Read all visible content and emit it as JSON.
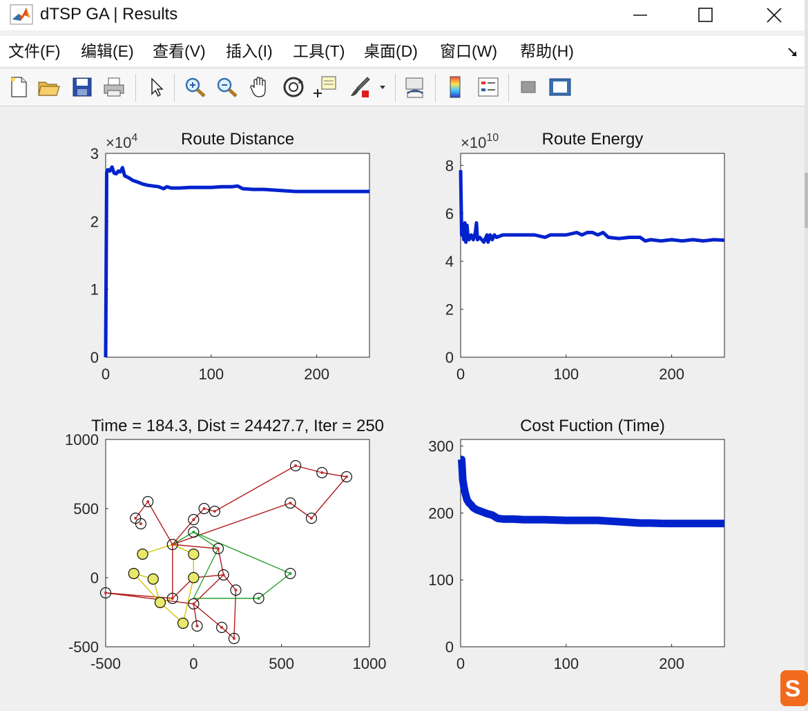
{
  "window": {
    "title": "dTSP GA | Results",
    "controls": {
      "minimize": "minimize",
      "maximize": "maximize",
      "close": "close"
    }
  },
  "menu": {
    "items": [
      "文件(F)",
      "编辑(E)",
      "查看(V)",
      "插入(I)",
      "工具(T)",
      "桌面(D)",
      "窗口(W)",
      "帮助(H)"
    ]
  },
  "toolbar": {
    "buttons": [
      "new-figure",
      "open-file",
      "save",
      "print",
      "edit-plot",
      "zoom-in",
      "zoom-out",
      "pan",
      "rotate-3d",
      "data-cursor",
      "brush",
      "link-plot",
      "colorbar",
      "legend",
      "hide-plot-tools",
      "show-plot-tools"
    ]
  },
  "colors": {
    "series": "#0022cc",
    "route_red": "#b21b1b",
    "route_green": "#2ca02c",
    "route_yellow": "#d4c400",
    "marker_red": "#c0302f",
    "marker_green": "#1f9e3a",
    "marker_yellow": "#e8e86a"
  },
  "chart_data": [
    {
      "type": "line",
      "title": "Route Distance",
      "exponent": "×10",
      "exponent_power": "4",
      "xlim": [
        0,
        250
      ],
      "ylim": [
        0,
        3
      ],
      "xticks": [
        0,
        100,
        200
      ],
      "xtick_labels": [
        "0",
        "100",
        "200"
      ],
      "yticks": [
        0,
        1,
        2,
        3
      ],
      "ytick_labels": [
        "0",
        "1",
        "2",
        "3"
      ],
      "series": [
        {
          "name": "distance",
          "x": [
            0,
            1,
            2,
            4,
            6,
            8,
            10,
            12,
            14,
            16,
            18,
            22,
            26,
            30,
            35,
            40,
            45,
            50,
            55,
            58,
            62,
            70,
            80,
            90,
            100,
            110,
            120,
            125,
            130,
            140,
            150,
            160,
            170,
            180,
            190,
            200,
            210,
            220,
            230,
            240,
            250
          ],
          "values": [
            0,
            2.72,
            2.76,
            2.74,
            2.8,
            2.71,
            2.7,
            2.74,
            2.73,
            2.79,
            2.67,
            2.64,
            2.6,
            2.58,
            2.55,
            2.53,
            2.52,
            2.51,
            2.48,
            2.51,
            2.49,
            2.49,
            2.5,
            2.5,
            2.5,
            2.51,
            2.51,
            2.52,
            2.48,
            2.47,
            2.47,
            2.46,
            2.45,
            2.44,
            2.44,
            2.44,
            2.44,
            2.44,
            2.44,
            2.44,
            2.44
          ]
        }
      ]
    },
    {
      "type": "line",
      "title": "Route Energy",
      "exponent": "×10",
      "exponent_power": "10",
      "xlim": [
        0,
        250
      ],
      "ylim": [
        0,
        8.5
      ],
      "xticks": [
        0,
        100,
        200
      ],
      "xtick_labels": [
        "0",
        "100",
        "200"
      ],
      "yticks": [
        0,
        2,
        4,
        6,
        8
      ],
      "ytick_labels": [
        "0",
        "2",
        "4",
        "6",
        "8"
      ],
      "series": [
        {
          "name": "energy",
          "x": [
            0,
            1,
            2,
            3,
            4,
            5,
            6,
            7,
            8,
            10,
            12,
            14,
            15,
            16,
            18,
            20,
            22,
            24,
            25,
            26,
            28,
            30,
            32,
            34,
            40,
            50,
            60,
            70,
            80,
            85,
            90,
            100,
            110,
            115,
            120,
            125,
            130,
            135,
            140,
            150,
            160,
            170,
            175,
            180,
            190,
            200,
            210,
            220,
            230,
            240,
            250
          ],
          "values": [
            7.8,
            5.1,
            5.3,
            4.9,
            5.6,
            4.8,
            5.5,
            5.0,
            4.9,
            5.1,
            4.9,
            5.2,
            5.6,
            4.9,
            5.0,
            4.9,
            4.8,
            5.0,
            5.1,
            4.8,
            5.1,
            4.9,
            5.1,
            5.0,
            5.1,
            5.1,
            5.1,
            5.1,
            5.0,
            5.1,
            5.1,
            5.1,
            5.2,
            5.1,
            5.2,
            5.2,
            5.1,
            5.2,
            5.0,
            4.95,
            5.0,
            5.0,
            4.85,
            4.9,
            4.85,
            4.9,
            4.85,
            4.9,
            4.85,
            4.9,
            4.88
          ]
        }
      ]
    },
    {
      "type": "scatter",
      "title": "Time = 184.3, Dist = 24427.7, Iter = 250",
      "xlim": [
        -500,
        1000
      ],
      "ylim": [
        -500,
        1000
      ],
      "xticks": [
        -500,
        0,
        500,
        1000
      ],
      "xtick_labels": [
        "-500",
        "0",
        "500",
        "1000"
      ],
      "yticks": [
        -500,
        0,
        500,
        1000
      ],
      "ytick_labels": [
        "-500",
        "0",
        "500",
        "1000"
      ],
      "nodes": [
        [
          580,
          810
        ],
        [
          730,
          760
        ],
        [
          870,
          730
        ],
        [
          550,
          540
        ],
        [
          670,
          430
        ],
        [
          -260,
          550
        ],
        [
          -330,
          430
        ],
        [
          -300,
          390
        ],
        [
          60,
          500
        ],
        [
          120,
          480
        ],
        [
          0,
          420
        ],
        [
          0,
          330
        ],
        [
          -120,
          240
        ],
        [
          140,
          210
        ],
        [
          -290,
          170
        ],
        [
          0,
          170
        ],
        [
          -340,
          30
        ],
        [
          -230,
          -10
        ],
        [
          0,
          0
        ],
        [
          170,
          20
        ],
        [
          550,
          30
        ],
        [
          240,
          -90
        ],
        [
          -120,
          -150
        ],
        [
          -500,
          -110
        ],
        [
          -190,
          -180
        ],
        [
          0,
          -190
        ],
        [
          370,
          -150
        ],
        [
          -60,
          -330
        ],
        [
          20,
          -350
        ],
        [
          160,
          -360
        ],
        [
          230,
          -440
        ]
      ],
      "node_colors": [
        "red",
        "red",
        "red",
        "red",
        "red",
        "red",
        "red",
        "red",
        "red",
        "red",
        "red",
        "green",
        "red",
        "red",
        "yellow",
        "yellow",
        "yellow",
        "yellow",
        "yellow",
        "red",
        "green",
        "red",
        "red",
        "red",
        "yellow",
        "red",
        "green",
        "yellow",
        "red",
        "red",
        "red"
      ],
      "routes": [
        {
          "color": "red",
          "path": [
            [
              -500,
              -110
            ],
            [
              -120,
              -150
            ],
            [
              -120,
              240
            ],
            [
              0,
              420
            ],
            [
              60,
              500
            ],
            [
              120,
              480
            ],
            [
              580,
              810
            ],
            [
              730,
              760
            ],
            [
              870,
              730
            ],
            [
              670,
              430
            ],
            [
              550,
              540
            ],
            [
              -120,
              240
            ]
          ]
        },
        {
          "color": "red",
          "path": [
            [
              -330,
              430
            ],
            [
              -260,
              550
            ],
            [
              -120,
              240
            ],
            [
              140,
              210
            ],
            [
              170,
              20
            ],
            [
              240,
              -90
            ],
            [
              230,
              -440
            ],
            [
              160,
              -360
            ],
            [
              0,
              -190
            ],
            [
              20,
              -350
            ]
          ]
        },
        {
          "color": "red",
          "path": [
            [
              -500,
              -110
            ],
            [
              0,
              -190
            ],
            [
              170,
              20
            ],
            [
              0,
              0
            ],
            [
              -120,
              -150
            ]
          ]
        },
        {
          "color": "green",
          "path": [
            [
              0,
              330
            ],
            [
              550,
              30
            ],
            [
              370,
              -150
            ],
            [
              0,
              -150
            ],
            [
              140,
              210
            ],
            [
              0,
              330
            ],
            [
              -120,
              240
            ]
          ]
        },
        {
          "color": "yellow",
          "path": [
            [
              -290,
              170
            ],
            [
              -120,
              240
            ],
            [
              0,
              170
            ],
            [
              0,
              0
            ],
            [
              -60,
              -330
            ],
            [
              -190,
              -180
            ],
            [
              -230,
              -10
            ],
            [
              -340,
              30
            ],
            [
              -190,
              -180
            ],
            [
              -120,
              -150
            ]
          ]
        }
      ]
    },
    {
      "type": "line",
      "title": "Cost Fuction (Time)",
      "xlim": [
        0,
        250
      ],
      "ylim": [
        0,
        310
      ],
      "xticks": [
        0,
        100,
        200
      ],
      "xtick_labels": [
        "0",
        "100",
        "200"
      ],
      "yticks": [
        0,
        100,
        200,
        300
      ],
      "ytick_labels": [
        "0",
        "100",
        "200",
        "300"
      ],
      "series": [
        {
          "name": "cost",
          "x": [
            0,
            1,
            2,
            3,
            4,
            5,
            6,
            8,
            10,
            12,
            15,
            20,
            25,
            30,
            35,
            40,
            50,
            60,
            80,
            100,
            120,
            130,
            140,
            150,
            160,
            170,
            180,
            190,
            200,
            220,
            250
          ],
          "values": [
            280,
            280,
            250,
            240,
            232,
            226,
            220,
            215,
            212,
            208,
            205,
            202,
            199,
            197,
            192,
            191,
            191,
            190,
            190,
            189,
            189,
            189,
            188,
            187,
            186,
            185,
            185,
            184.5,
            184.3,
            184.3,
            184.3
          ]
        }
      ]
    }
  ]
}
